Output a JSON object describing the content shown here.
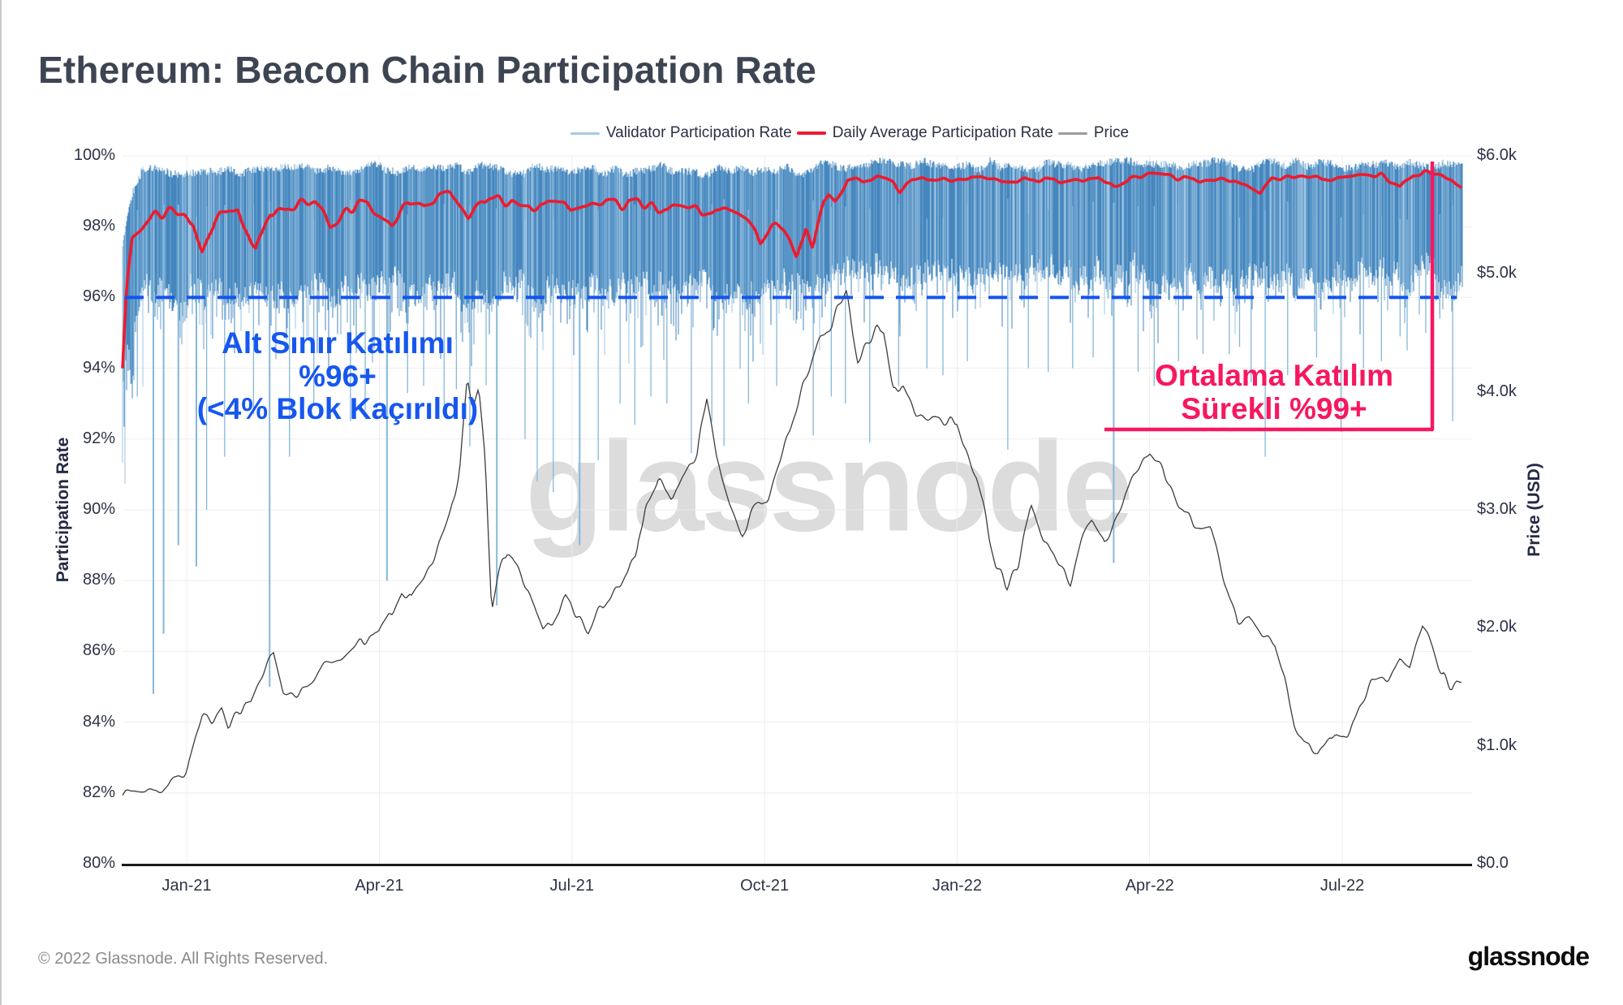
{
  "page": {
    "title": "Ethereum: Beacon Chain Participation Rate",
    "footer_left": "© 2022 Glassnode. All Rights Reserved.",
    "brand": "glassnode",
    "watermark": "glassnode"
  },
  "colors": {
    "band_dark": "#4586BE",
    "band_mid": "#6CA3CE",
    "band_light": "#9FC6E2",
    "spike": "#85B8DA",
    "avg_line": "#EC1B2E",
    "price_line": "#3C3C3C",
    "threshold_blue": "#1353EF",
    "annotation_blue": "#1657EE",
    "annotation_pink": "#F71760",
    "grid": "#EDEDED",
    "axis_line": "#1A1A1A",
    "tick_text": "#2D3347"
  },
  "legend": [
    {
      "label": "Validator Participation Rate",
      "swatch_color": "#A6C9E3",
      "swatch_height": 3
    },
    {
      "label": "Daily Average Participation Rate",
      "swatch_color": "#EC1B2E",
      "swatch_height": 4
    },
    {
      "label": "Price",
      "swatch_color": "#9B9B9B",
      "swatch_height": 3
    }
  ],
  "annotations": {
    "lower_bound": {
      "lines": [
        "Alt Sınır Katılımı",
        "%96+",
        "(<4% Blok Kaçırıldı)"
      ],
      "color": "#1657EE"
    },
    "average": {
      "lines": [
        "Ortalama Katılım",
        "Sürekli %99+"
      ],
      "color": "#F71760"
    }
  },
  "axes": {
    "left": {
      "title": "Participation Rate",
      "ticks": [
        "100%",
        "98%",
        "96%",
        "94%",
        "92%",
        "90%",
        "88%",
        "86%",
        "84%",
        "82%",
        "80%"
      ]
    },
    "right": {
      "title": "Price (USD)",
      "ticks": [
        "$6.0k",
        "$5.0k",
        "$4.0k",
        "$3.0k",
        "$2.0k",
        "$1.0k",
        "$0.0"
      ]
    },
    "x": {
      "ticks": [
        "Jan-21",
        "Apr-21",
        "Jul-21",
        "Oct-21",
        "Jan-22",
        "Apr-22",
        "Jul-22"
      ]
    }
  },
  "chart_data": {
    "type": "line",
    "title": "Ethereum: Beacon Chain Participation Rate",
    "x_range_months": [
      "Dec-2020",
      "Sep-2022"
    ],
    "x_tick_labels": [
      "Jan-21",
      "Apr-21",
      "Jul-21",
      "Oct-21",
      "Jan-22",
      "Apr-22",
      "Jul-22"
    ],
    "left_axis": {
      "label": "Participation Rate",
      "unit": "%",
      "range": [
        80,
        100
      ],
      "tick_step": 2,
      "grid": true
    },
    "right_axis": {
      "label": "Price (USD)",
      "unit": "USD (k)",
      "range": [
        0,
        6
      ],
      "tick_step": 1
    },
    "threshold": {
      "value_pct": 96,
      "style": "dashed",
      "color": "#1353EF",
      "meaning": "lower bound participation 96%+"
    },
    "bracket": {
      "color": "#F71760",
      "from_month": 15.3,
      "to_month": 20.4,
      "top_pct": 99.85,
      "note": "average participation consistently 99%+"
    },
    "series": [
      {
        "name": "Validator Participation Rate",
        "type": "band",
        "color": "#4E8EC5",
        "envelope_top_bottom_pct": [
          [
            0,
            97.5,
            94.0
          ],
          [
            0.15,
            99.0,
            95.0
          ],
          [
            0.3,
            99.7,
            96.2
          ],
          [
            2,
            99.7,
            96.3
          ],
          [
            4,
            99.75,
            96.3
          ],
          [
            6,
            99.75,
            96.2
          ],
          [
            8,
            99.7,
            96.3
          ],
          [
            10,
            99.7,
            96.2
          ],
          [
            10.6,
            99.7,
            96.4
          ],
          [
            10.9,
            99.85,
            96.6
          ],
          [
            13,
            99.85,
            96.6
          ],
          [
            16,
            99.85,
            96.55
          ],
          [
            19,
            99.85,
            96.6
          ],
          [
            20.87,
            99.9,
            96.6
          ]
        ],
        "deep_spikes_month_lowpct": [
          [
            0.23,
            93.2
          ],
          [
            0.48,
            84.8
          ],
          [
            0.64,
            86.5
          ],
          [
            0.87,
            89.0
          ],
          [
            1.15,
            88.4
          ],
          [
            1.31,
            90.0
          ],
          [
            1.59,
            91.5
          ],
          [
            2.04,
            92.7
          ],
          [
            2.29,
            85.0
          ],
          [
            2.6,
            91.5
          ],
          [
            2.98,
            93.0
          ],
          [
            3.55,
            92.5
          ],
          [
            3.78,
            92.8
          ],
          [
            4.12,
            88.0
          ],
          [
            4.44,
            93.3
          ],
          [
            4.69,
            93.5
          ],
          [
            5.01,
            92.8
          ],
          [
            5.2,
            93.4
          ],
          [
            5.41,
            91.8
          ],
          [
            5.83,
            87.3
          ],
          [
            6.27,
            92.0
          ],
          [
            6.46,
            90.8
          ],
          [
            6.71,
            90.5
          ],
          [
            7.12,
            89.0
          ],
          [
            7.41,
            91.4
          ],
          [
            7.75,
            93.0
          ],
          [
            7.98,
            92.4
          ],
          [
            8.23,
            93.2
          ],
          [
            8.48,
            93.0
          ],
          [
            8.86,
            91.6
          ],
          [
            9.18,
            92.5
          ],
          [
            9.37,
            91.8
          ],
          [
            9.75,
            93.0
          ],
          [
            10.19,
            93.5
          ],
          [
            10.76,
            92.1
          ],
          [
            11.04,
            93.2
          ],
          [
            11.26,
            93.0
          ],
          [
            11.64,
            91.9
          ],
          [
            12.09,
            93.5
          ],
          [
            12.53,
            94.0
          ],
          [
            12.78,
            93.8
          ],
          [
            13.16,
            94.2
          ],
          [
            13.79,
            91.7
          ],
          [
            14.11,
            94.0
          ],
          [
            14.42,
            93.9
          ],
          [
            14.8,
            94.0
          ],
          [
            15.12,
            94.3
          ],
          [
            15.44,
            88.5
          ],
          [
            15.82,
            93.9
          ],
          [
            16.07,
            93.5
          ],
          [
            16.45,
            94.2
          ],
          [
            16.83,
            94.4
          ],
          [
            17.24,
            94.4
          ],
          [
            17.4,
            94.6
          ],
          [
            17.58,
            93.6
          ],
          [
            17.8,
            91.5
          ],
          [
            18.15,
            93.8
          ],
          [
            18.6,
            94.3
          ],
          [
            18.98,
            92.2
          ],
          [
            19.33,
            94.0
          ],
          [
            19.61,
            94.2
          ],
          [
            19.9,
            94.9
          ],
          [
            20.01,
            94.5
          ],
          [
            20.3,
            95.0
          ],
          [
            20.52,
            95.4
          ],
          [
            20.72,
            92.5
          ]
        ]
      },
      {
        "name": "Daily Average Participation Rate",
        "type": "line",
        "color": "#EC1B2E",
        "points_month_pct": [
          [
            0,
            94.2
          ],
          [
            0.06,
            96.5
          ],
          [
            0.15,
            97.9
          ],
          [
            0.4,
            98.3
          ],
          [
            0.8,
            98.45
          ],
          [
            1.1,
            98.2
          ],
          [
            1.24,
            97.5
          ],
          [
            1.45,
            98.4
          ],
          [
            1.8,
            98.5
          ],
          [
            2.07,
            97.2
          ],
          [
            2.3,
            98.4
          ],
          [
            2.6,
            98.5
          ],
          [
            3.0,
            98.6
          ],
          [
            3.24,
            97.9
          ],
          [
            3.5,
            98.5
          ],
          [
            3.8,
            98.6
          ],
          [
            4.2,
            98.0
          ],
          [
            4.45,
            98.7
          ],
          [
            4.8,
            98.85
          ],
          [
            5.1,
            98.9
          ],
          [
            5.39,
            98.3
          ],
          [
            5.6,
            98.9
          ],
          [
            5.9,
            98.8
          ],
          [
            6.2,
            98.6
          ],
          [
            6.5,
            98.7
          ],
          [
            6.9,
            98.6
          ],
          [
            7.3,
            98.7
          ],
          [
            7.7,
            98.6
          ],
          [
            8.0,
            98.7
          ],
          [
            8.4,
            98.6
          ],
          [
            8.8,
            98.55
          ],
          [
            9.2,
            98.5
          ],
          [
            9.5,
            98.4
          ],
          [
            9.8,
            97.9
          ],
          [
            9.94,
            97.6
          ],
          [
            10.1,
            98.1
          ],
          [
            10.3,
            97.9
          ],
          [
            10.5,
            96.9
          ],
          [
            10.65,
            97.9
          ],
          [
            10.75,
            97.5
          ],
          [
            10.9,
            98.7
          ],
          [
            11.0,
            99.0
          ],
          [
            11.1,
            98.8
          ],
          [
            11.3,
            99.3
          ],
          [
            11.7,
            99.35
          ],
          [
            12.0,
            99.3
          ],
          [
            12.1,
            99.0
          ],
          [
            12.3,
            99.3
          ],
          [
            12.7,
            99.35
          ],
          [
            13.0,
            99.3
          ],
          [
            13.4,
            99.35
          ],
          [
            13.8,
            99.3
          ],
          [
            14.2,
            99.35
          ],
          [
            14.6,
            99.3
          ],
          [
            15.0,
            99.35
          ],
          [
            15.2,
            99.45
          ],
          [
            15.44,
            99.1
          ],
          [
            15.7,
            99.4
          ],
          [
            16.0,
            99.45
          ],
          [
            16.4,
            99.35
          ],
          [
            16.8,
            99.3
          ],
          [
            17.2,
            99.35
          ],
          [
            17.5,
            99.2
          ],
          [
            17.73,
            98.9
          ],
          [
            17.9,
            99.3
          ],
          [
            18.3,
            99.4
          ],
          [
            18.7,
            99.35
          ],
          [
            19.0,
            99.4
          ],
          [
            19.3,
            99.45
          ],
          [
            19.6,
            99.5
          ],
          [
            19.9,
            99.15
          ],
          [
            20.1,
            99.5
          ],
          [
            20.3,
            99.55
          ],
          [
            20.5,
            99.5
          ],
          [
            20.7,
            99.4
          ],
          [
            20.87,
            99.15
          ]
        ]
      },
      {
        "name": "Price",
        "type": "line",
        "color": "#3C3C3C",
        "points_month_usdk": [
          [
            0,
            0.59
          ],
          [
            0.3,
            0.6
          ],
          [
            0.7,
            0.65
          ],
          [
            1.0,
            0.74
          ],
          [
            1.15,
            1.05
          ],
          [
            1.25,
            1.25
          ],
          [
            1.4,
            1.22
          ],
          [
            1.55,
            1.38
          ],
          [
            1.65,
            1.15
          ],
          [
            1.8,
            1.3
          ],
          [
            2.0,
            1.33
          ],
          [
            2.2,
            1.6
          ],
          [
            2.35,
            1.8
          ],
          [
            2.5,
            1.48
          ],
          [
            2.7,
            1.45
          ],
          [
            2.9,
            1.52
          ],
          [
            3.1,
            1.65
          ],
          [
            3.4,
            1.72
          ],
          [
            3.7,
            1.85
          ],
          [
            4.0,
            1.95
          ],
          [
            4.2,
            2.12
          ],
          [
            4.35,
            2.32
          ],
          [
            4.5,
            2.25
          ],
          [
            4.7,
            2.4
          ],
          [
            4.9,
            2.65
          ],
          [
            5.1,
            2.95
          ],
          [
            5.25,
            3.35
          ],
          [
            5.37,
            4.18
          ],
          [
            5.45,
            3.85
          ],
          [
            5.55,
            4.05
          ],
          [
            5.65,
            3.4
          ],
          [
            5.75,
            2.15
          ],
          [
            5.85,
            2.45
          ],
          [
            6.0,
            2.7
          ],
          [
            6.15,
            2.55
          ],
          [
            6.35,
            2.25
          ],
          [
            6.55,
            1.95
          ],
          [
            6.7,
            2.05
          ],
          [
            6.9,
            2.25
          ],
          [
            7.1,
            2.1
          ],
          [
            7.25,
            1.95
          ],
          [
            7.45,
            2.18
          ],
          [
            7.65,
            2.32
          ],
          [
            7.85,
            2.48
          ],
          [
            8.0,
            2.55
          ],
          [
            8.15,
            3.05
          ],
          [
            8.35,
            3.22
          ],
          [
            8.55,
            3.12
          ],
          [
            8.75,
            3.28
          ],
          [
            8.95,
            3.45
          ],
          [
            9.1,
            3.95
          ],
          [
            9.25,
            3.45
          ],
          [
            9.45,
            3.05
          ],
          [
            9.65,
            2.8
          ],
          [
            9.85,
            3.02
          ],
          [
            10.05,
            3.1
          ],
          [
            10.3,
            3.5
          ],
          [
            10.6,
            4.1
          ],
          [
            10.85,
            4.4
          ],
          [
            11.0,
            4.55
          ],
          [
            11.27,
            4.85
          ],
          [
            11.45,
            4.3
          ],
          [
            11.65,
            4.45
          ],
          [
            11.85,
            4.55
          ],
          [
            12.0,
            4.0
          ],
          [
            12.15,
            4.1
          ],
          [
            12.35,
            3.85
          ],
          [
            12.6,
            3.75
          ],
          [
            12.85,
            3.7
          ],
          [
            13.0,
            3.75
          ],
          [
            13.3,
            3.25
          ],
          [
            13.6,
            2.55
          ],
          [
            13.77,
            2.35
          ],
          [
            13.95,
            2.55
          ],
          [
            14.15,
            3.05
          ],
          [
            14.35,
            2.7
          ],
          [
            14.6,
            2.55
          ],
          [
            14.77,
            2.4
          ],
          [
            14.95,
            2.75
          ],
          [
            15.1,
            2.9
          ],
          [
            15.3,
            2.7
          ],
          [
            15.55,
            3.05
          ],
          [
            15.8,
            3.35
          ],
          [
            16.0,
            3.48
          ],
          [
            16.2,
            3.35
          ],
          [
            16.45,
            3.05
          ],
          [
            16.7,
            2.9
          ],
          [
            16.95,
            2.85
          ],
          [
            17.15,
            2.4
          ],
          [
            17.37,
            2.05
          ],
          [
            17.55,
            2.1
          ],
          [
            17.75,
            1.95
          ],
          [
            17.95,
            1.85
          ],
          [
            18.1,
            1.55
          ],
          [
            18.25,
            1.2
          ],
          [
            18.45,
            1.0
          ],
          [
            18.62,
            0.92
          ],
          [
            18.8,
            1.12
          ],
          [
            19.0,
            1.08
          ],
          [
            19.2,
            1.22
          ],
          [
            19.45,
            1.5
          ],
          [
            19.7,
            1.6
          ],
          [
            19.9,
            1.72
          ],
          [
            20.05,
            1.62
          ],
          [
            20.25,
            1.98
          ],
          [
            20.4,
            1.88
          ],
          [
            20.55,
            1.62
          ],
          [
            20.7,
            1.52
          ],
          [
            20.87,
            1.58
          ]
        ]
      }
    ]
  }
}
